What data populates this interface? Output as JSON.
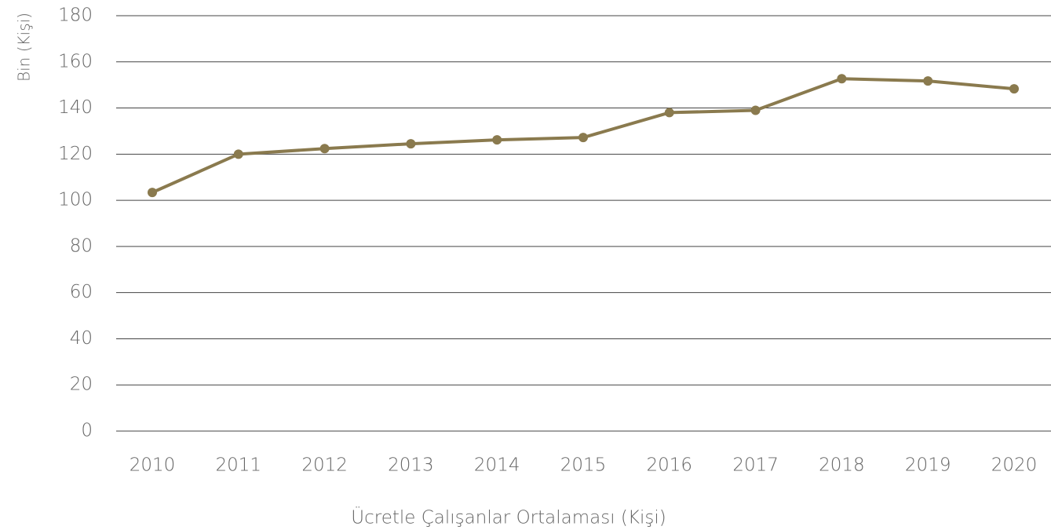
{
  "chart_data": {
    "type": "line",
    "y_label": "Bin (Kişi)",
    "categories": [
      "2010",
      "2011",
      "2012",
      "2013",
      "2014",
      "2015",
      "2016",
      "2017",
      "2018",
      "2019",
      "2020"
    ],
    "series": [
      {
        "name": "Ücretle Çalışanlar Ortalaması (Kişi)",
        "color": "#8a7a4e",
        "values": [
          103.4,
          120,
          122.4,
          124.5,
          126.2,
          127.2,
          138,
          139,
          152.7,
          151.7,
          148.3
        ]
      }
    ],
    "ylim": [
      0,
      180
    ],
    "yticks": [
      0,
      20,
      40,
      60,
      80,
      100,
      120,
      140,
      160,
      180
    ],
    "grid": true,
    "legend": "bottom"
  }
}
